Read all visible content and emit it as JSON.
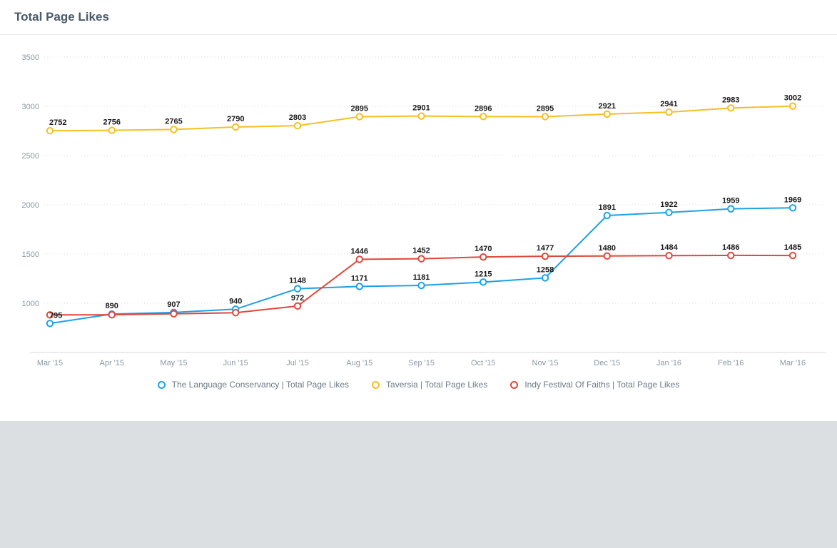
{
  "header": {
    "title": "Total Page Likes"
  },
  "chart_data": {
    "type": "line",
    "categories": [
      "Mar '15",
      "Apr '15",
      "May '15",
      "Jun '15",
      "Jul '15",
      "Aug '15",
      "Sep '15",
      "Oct '15",
      "Nov '15",
      "Dec '15",
      "Jan '16",
      "Feb '16",
      "Mar '16"
    ],
    "ylim": [
      500,
      3500
    ],
    "yticks": [
      1000,
      1500,
      2000,
      2500,
      3000,
      3500
    ],
    "grid": true,
    "legend_position": "bottom",
    "series": [
      {
        "name": "The Language Conservancy | Total Page Likes",
        "color": "#1ea1e6",
        "values": [
          795,
          890,
          907,
          940,
          1148,
          1171,
          1181,
          1215,
          1258,
          1891,
          1922,
          1959,
          1969
        ],
        "labels": [
          "795",
          "890",
          "907",
          "940",
          "1148",
          "1171",
          "1181",
          "1215",
          "1258",
          "1891",
          "1922",
          "1959",
          "1969"
        ]
      },
      {
        "name": "Taversia | Total Page Likes",
        "color": "#f6bf24",
        "values": [
          2752,
          2756,
          2765,
          2790,
          2803,
          2895,
          2901,
          2896,
          2895,
          2921,
          2941,
          2983,
          3002
        ],
        "labels": [
          "2752",
          "2756",
          "2765",
          "2790",
          "2803",
          "2895",
          "2901",
          "2896",
          "2895",
          "2921",
          "2941",
          "2983",
          "3002"
        ]
      },
      {
        "name": "Indy Festival Of Faiths | Total Page Likes",
        "color": "#e0473b",
        "values": [
          882,
          883,
          893,
          904,
          972,
          1446,
          1452,
          1470,
          1477,
          1480,
          1484,
          1486,
          1485
        ],
        "labels": [
          "",
          "",
          "",
          "",
          "972",
          "1446",
          "1452",
          "1470",
          "1477",
          "1480",
          "1484",
          "1486",
          "1485"
        ]
      }
    ]
  }
}
